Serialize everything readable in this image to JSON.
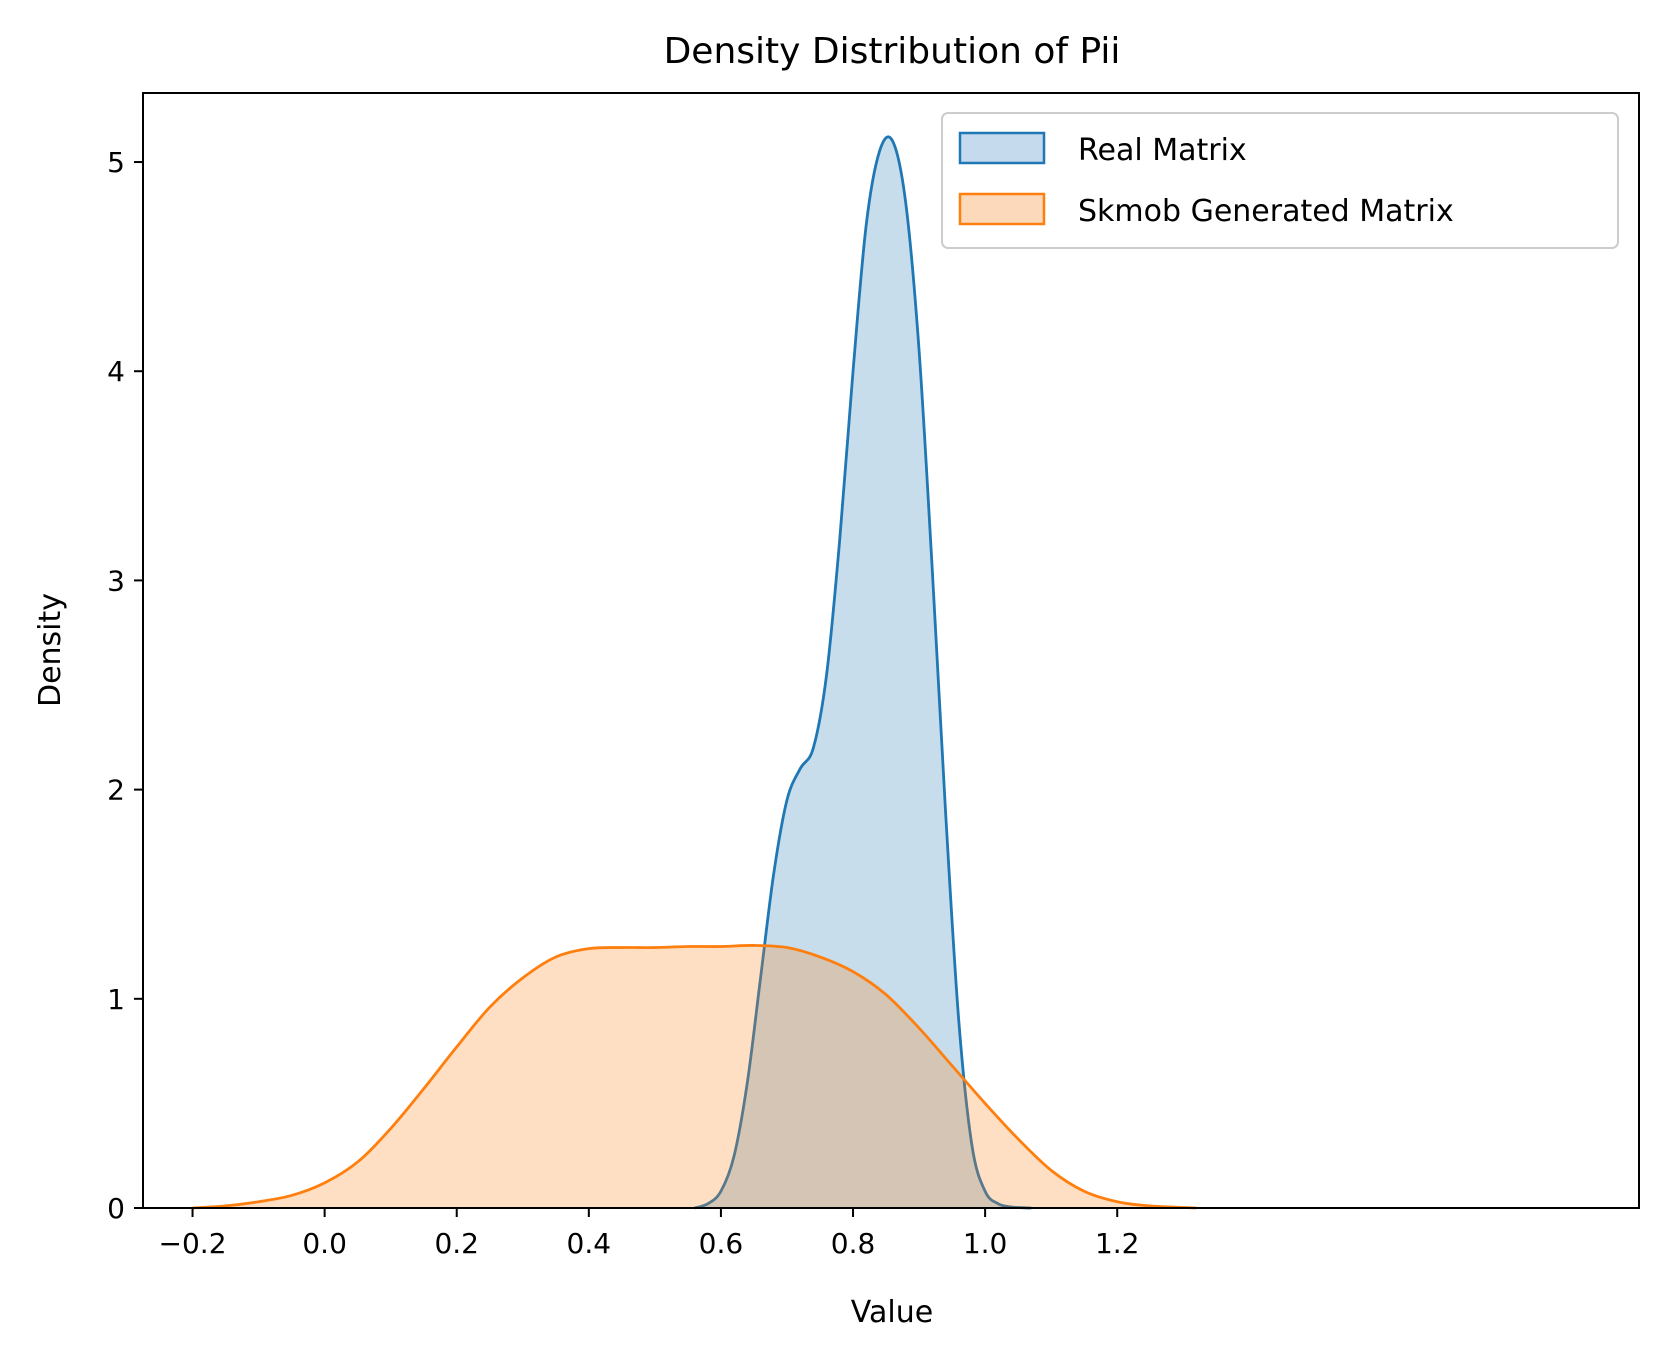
{
  "chart_data": {
    "type": "area",
    "title": "Density Distribution of Pii",
    "xlabel": "Value",
    "ylabel": "Density",
    "xlim": [
      -0.275,
      1.99
    ],
    "ylim": [
      0,
      5.33
    ],
    "xticks": [
      {
        "value": -0.2,
        "label": "−0.2"
      },
      {
        "value": 0.0,
        "label": "0.0"
      },
      {
        "value": 0.2,
        "label": "0.2"
      },
      {
        "value": 0.4,
        "label": "0.4"
      },
      {
        "value": 0.6,
        "label": "0.6"
      },
      {
        "value": 0.8,
        "label": "0.8"
      },
      {
        "value": 1.0,
        "label": "1.0"
      },
      {
        "value": 1.2,
        "label": "1.2"
      }
    ],
    "yticks": [
      {
        "value": 0,
        "label": "0"
      },
      {
        "value": 1,
        "label": "1"
      },
      {
        "value": 2,
        "label": "2"
      },
      {
        "value": 3,
        "label": "3"
      },
      {
        "value": 4,
        "label": "4"
      },
      {
        "value": 5,
        "label": "5"
      }
    ],
    "grid": false,
    "legend_position": "top-right",
    "series": [
      {
        "name": "Real Matrix",
        "color": "#1f77b4",
        "fill": "#c5dbed",
        "x": [
          0.56,
          0.58,
          0.6,
          0.62,
          0.64,
          0.66,
          0.68,
          0.7,
          0.72,
          0.74,
          0.76,
          0.78,
          0.8,
          0.82,
          0.84,
          0.86,
          0.88,
          0.9,
          0.92,
          0.94,
          0.96,
          0.98,
          1.0,
          1.02,
          1.04,
          1.06,
          1.07
        ],
        "y": [
          0.0,
          0.02,
          0.08,
          0.25,
          0.6,
          1.1,
          1.6,
          1.95,
          2.1,
          2.2,
          2.55,
          3.2,
          4.0,
          4.7,
          5.05,
          5.1,
          4.8,
          4.1,
          3.05,
          1.9,
          0.9,
          0.3,
          0.08,
          0.02,
          0.005,
          0.001,
          0.0
        ]
      },
      {
        "name": "Skmob Generated Matrix",
        "color": "#ff7f0e",
        "fill": "#fdd9bb",
        "x": [
          -0.2,
          -0.15,
          -0.1,
          -0.05,
          0.0,
          0.05,
          0.1,
          0.15,
          0.2,
          0.25,
          0.3,
          0.35,
          0.4,
          0.45,
          0.5,
          0.55,
          0.6,
          0.65,
          0.7,
          0.75,
          0.8,
          0.85,
          0.9,
          0.95,
          1.0,
          1.05,
          1.1,
          1.15,
          1.2,
          1.25,
          1.32
        ],
        "y": [
          0.0,
          0.01,
          0.03,
          0.06,
          0.12,
          0.22,
          0.38,
          0.57,
          0.77,
          0.96,
          1.1,
          1.2,
          1.24,
          1.245,
          1.245,
          1.25,
          1.25,
          1.255,
          1.245,
          1.2,
          1.13,
          1.02,
          0.86,
          0.68,
          0.5,
          0.33,
          0.18,
          0.08,
          0.03,
          0.01,
          0.0
        ]
      }
    ]
  }
}
